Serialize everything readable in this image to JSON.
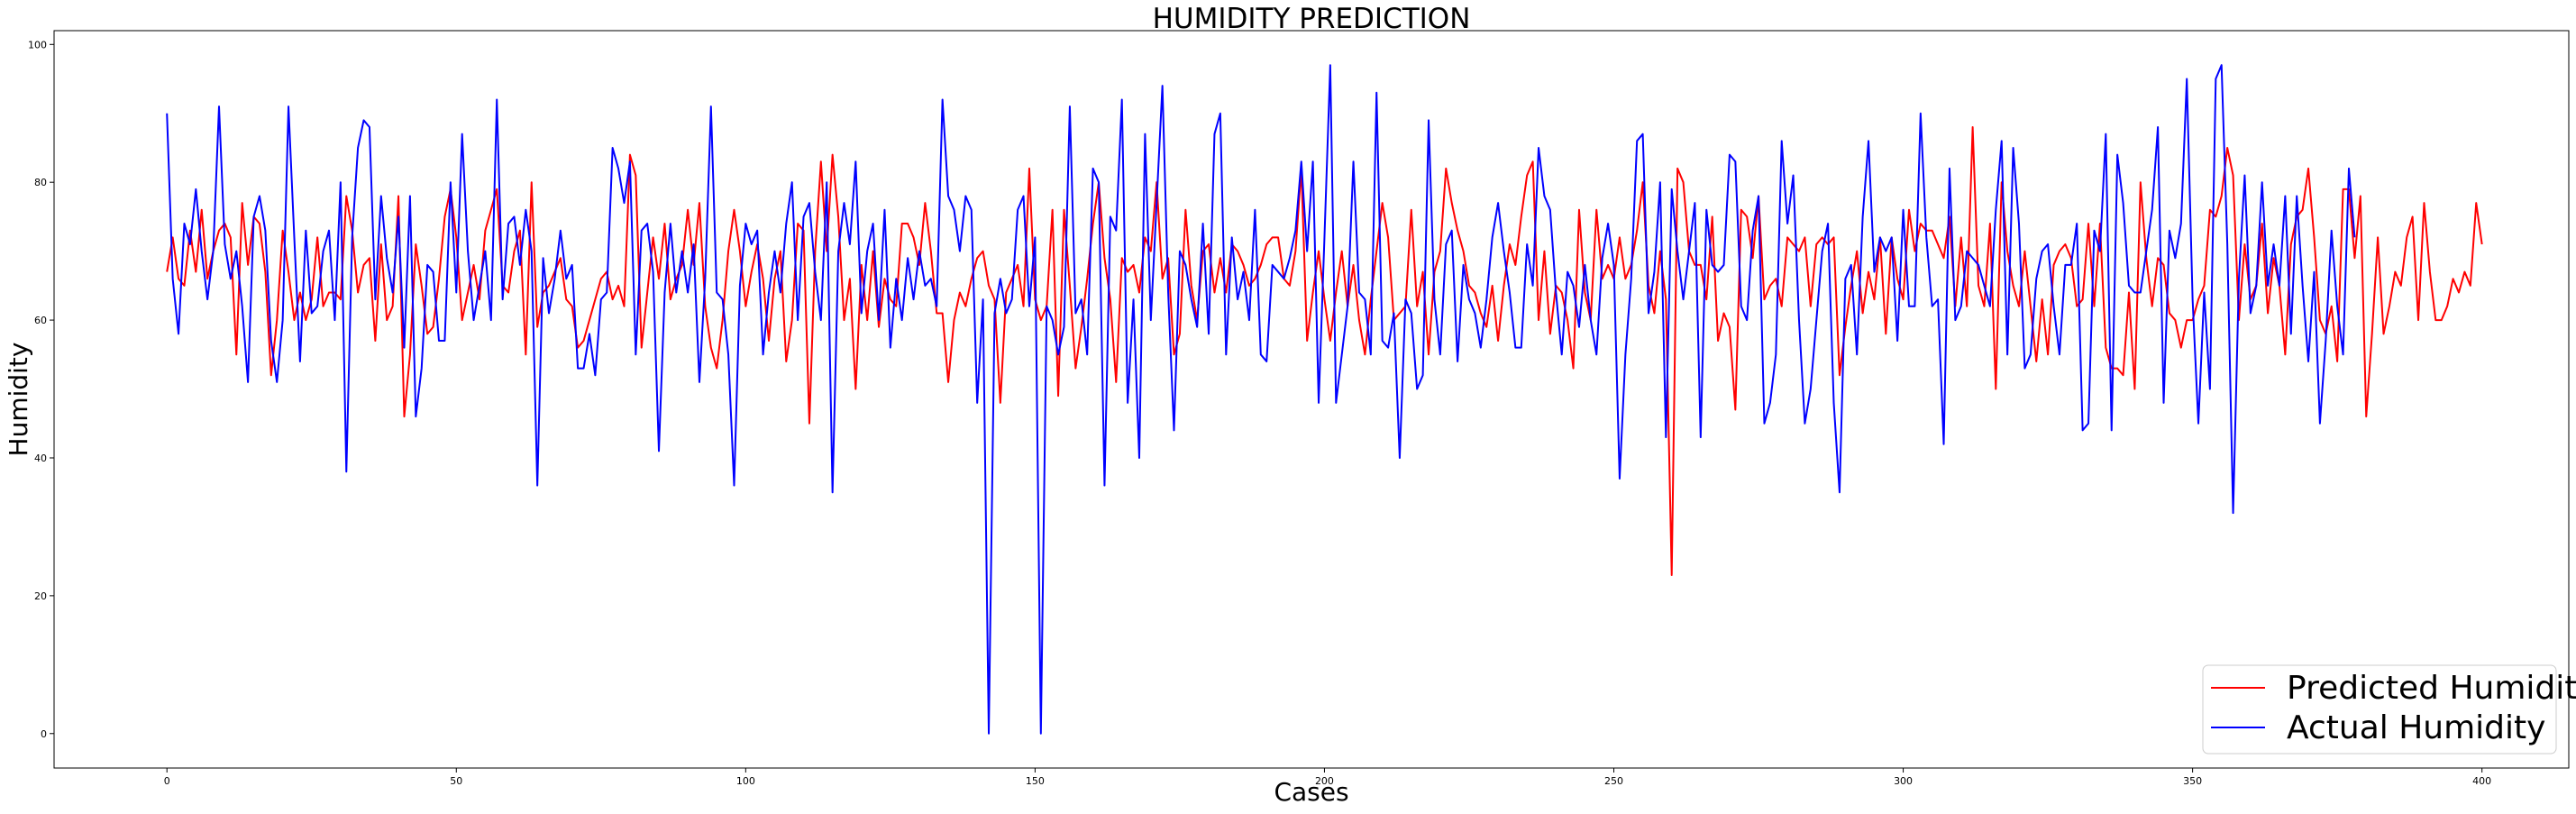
{
  "chart_data": {
    "type": "line",
    "title": "HUMIDITY PREDICTION",
    "xlabel": "Cases",
    "ylabel": "Humidity",
    "xlim": [
      -19.5,
      415
    ],
    "ylim": [
      -5,
      102
    ],
    "xticks": [
      0,
      50,
      100,
      150,
      200,
      250,
      300,
      350,
      400
    ],
    "yticks": [
      0,
      20,
      40,
      60,
      80,
      100
    ],
    "grid": false,
    "legend_position": "lower-right",
    "series": [
      {
        "name": "Predicted Humidity",
        "color": "#ff0000",
        "values": [
          67,
          72,
          66,
          65,
          73,
          67,
          76,
          66,
          70,
          73,
          74,
          72,
          55,
          77,
          68,
          75,
          74,
          67,
          52,
          60,
          73,
          67,
          60,
          64,
          60,
          63,
          72,
          62,
          64,
          64,
          63,
          78,
          73,
          64,
          68,
          69,
          57,
          71,
          60,
          62,
          78,
          46,
          55,
          71,
          65,
          58,
          59,
          66,
          75,
          79,
          72,
          60,
          64,
          68,
          63,
          73,
          76,
          79,
          65,
          64,
          70,
          73,
          55,
          80,
          59,
          64,
          65,
          67,
          69,
          63,
          62,
          56,
          57,
          60,
          63,
          66,
          67,
          63,
          65,
          62,
          84,
          81,
          56,
          64,
          72,
          66,
          74,
          63,
          66,
          68,
          76,
          68,
          77,
          62,
          56,
          53,
          60,
          70,
          76,
          70,
          62,
          67,
          71,
          66,
          57,
          66,
          70,
          54,
          60,
          74,
          73,
          45,
          70,
          83,
          70,
          84,
          75,
          60,
          66,
          50,
          68,
          60,
          70,
          59,
          66,
          63,
          62,
          74,
          74,
          72,
          68,
          77,
          70,
          61,
          61,
          51,
          60,
          64,
          62,
          66,
          69,
          70,
          65,
          63,
          48,
          64,
          66,
          68,
          62,
          82,
          63,
          60,
          62,
          76,
          49,
          76,
          65,
          53,
          59,
          66,
          74,
          80,
          69,
          63,
          51,
          69,
          67,
          68,
          64,
          72,
          70,
          80,
          66,
          69,
          55,
          58,
          76,
          65,
          60,
          70,
          71,
          64,
          69,
          64,
          71,
          70,
          68,
          65,
          66,
          68,
          71,
          72,
          72,
          66,
          65,
          70,
          82,
          57,
          64,
          70,
          63,
          57,
          64,
          70,
          62,
          68,
          60,
          55,
          63,
          70,
          77,
          72,
          60,
          61,
          62,
          76,
          62,
          67,
          55,
          67,
          70,
          82,
          77,
          73,
          70,
          65,
          64,
          61,
          59,
          65,
          57,
          65,
          71,
          68,
          75,
          81,
          83,
          60,
          70,
          58,
          65,
          64,
          60,
          53,
          76,
          64,
          60,
          76,
          66,
          68,
          66,
          72,
          66,
          68,
          73,
          80,
          65,
          61,
          70,
          63,
          23,
          82,
          80,
          70,
          68,
          68,
          63,
          75,
          57,
          61,
          59,
          47,
          76,
          75,
          69,
          78,
          63,
          65,
          66,
          62,
          72,
          71,
          70,
          72,
          62,
          71,
          72,
          71,
          72,
          52,
          59,
          65,
          70,
          61,
          67,
          63,
          72,
          58,
          72,
          66,
          63,
          76,
          70,
          74,
          73,
          73,
          71,
          69,
          75,
          62,
          72,
          62,
          88,
          65,
          62,
          74,
          50,
          80,
          70,
          65,
          62,
          70,
          62,
          54,
          63,
          55,
          68,
          70,
          71,
          69,
          62,
          63,
          74,
          62,
          74,
          56,
          53,
          53,
          52,
          64,
          50,
          80,
          69,
          62,
          69,
          68,
          61,
          60,
          56,
          60,
          60,
          63,
          65,
          76,
          75,
          78,
          85,
          81,
          60,
          71,
          63,
          65,
          74,
          61,
          69,
          65,
          55,
          71,
          75,
          76,
          82,
          72,
          60,
          58,
          62,
          54,
          79,
          79,
          69,
          78,
          46,
          58,
          72,
          58,
          62,
          67,
          65,
          72,
          75,
          60,
          77,
          67,
          60,
          60,
          62,
          66,
          64,
          67,
          65,
          77,
          71
        ]
      },
      {
        "name": "Actual Humidity",
        "color": "#0000ff",
        "values": [
          90,
          66,
          58,
          74,
          71,
          79,
          70,
          63,
          70,
          91,
          71,
          66,
          70,
          62,
          51,
          75,
          78,
          73,
          57,
          51,
          60,
          91,
          72,
          54,
          73,
          61,
          62,
          70,
          73,
          60,
          80,
          38,
          72,
          85,
          89,
          88,
          63,
          78,
          69,
          64,
          75,
          56,
          78,
          46,
          53,
          68,
          67,
          57,
          57,
          80,
          64,
          87,
          70,
          60,
          65,
          70,
          60,
          92,
          63,
          74,
          75,
          68,
          76,
          70,
          36,
          69,
          61,
          66,
          73,
          66,
          68,
          53,
          53,
          58,
          52,
          63,
          64,
          85,
          82,
          77,
          83,
          55,
          73,
          74,
          67,
          41,
          64,
          74,
          64,
          70,
          64,
          71,
          51,
          66,
          91,
          64,
          63,
          55,
          36,
          65,
          74,
          71,
          73,
          55,
          64,
          70,
          64,
          74,
          80,
          60,
          75,
          77,
          67,
          60,
          80,
          35,
          70,
          77,
          71,
          83,
          61,
          70,
          74,
          60,
          76,
          56,
          66,
          60,
          69,
          63,
          70,
          65,
          66,
          62,
          92,
          78,
          76,
          70,
          78,
          76,
          48,
          63,
          0,
          61,
          66,
          61,
          63,
          76,
          78,
          62,
          72,
          0,
          62,
          60,
          55,
          59,
          91,
          61,
          63,
          55,
          82,
          80,
          36,
          75,
          73,
          92,
          48,
          63,
          40,
          87,
          60,
          77,
          94,
          64,
          44,
          70,
          68,
          63,
          59,
          74,
          58,
          87,
          90,
          55,
          72,
          63,
          67,
          60,
          76,
          55,
          54,
          68,
          67,
          66,
          69,
          73,
          83,
          70,
          83,
          48,
          72,
          97,
          48,
          55,
          62,
          83,
          64,
          63,
          55,
          93,
          57,
          56,
          61,
          40,
          63,
          61,
          50,
          52,
          89,
          63,
          55,
          71,
          73,
          54,
          68,
          63,
          61,
          56,
          63,
          72,
          77,
          70,
          64,
          56,
          56,
          71,
          65,
          85,
          78,
          76,
          64,
          55,
          67,
          65,
          59,
          68,
          60,
          55,
          69,
          74,
          68,
          37,
          55,
          66,
          86,
          87,
          61,
          67,
          80,
          43,
          79,
          70,
          63,
          70,
          77,
          43,
          76,
          68,
          67,
          68,
          84,
          83,
          62,
          60,
          73,
          78,
          45,
          48,
          55,
          86,
          74,
          81,
          60,
          45,
          50,
          60,
          70,
          74,
          48,
          35,
          66,
          68,
          55,
          75,
          86,
          67,
          72,
          70,
          72,
          57,
          76,
          62,
          62,
          90,
          72,
          62,
          63,
          42,
          82,
          60,
          62,
          70,
          69,
          68,
          65,
          62,
          76,
          86,
          55,
          85,
          74,
          53,
          55,
          66,
          70,
          71,
          62,
          55,
          68,
          68,
          74,
          44,
          45,
          73,
          70,
          87,
          44,
          84,
          77,
          65,
          64,
          64,
          70,
          76,
          88,
          48,
          73,
          69,
          74,
          95,
          63,
          45,
          64,
          50,
          95,
          97,
          71,
          32,
          66,
          81,
          61,
          65,
          80,
          65,
          71,
          65,
          78,
          58,
          78,
          65,
          54,
          67,
          45,
          57,
          73,
          62,
          55,
          82,
          72
        ]
      }
    ]
  }
}
